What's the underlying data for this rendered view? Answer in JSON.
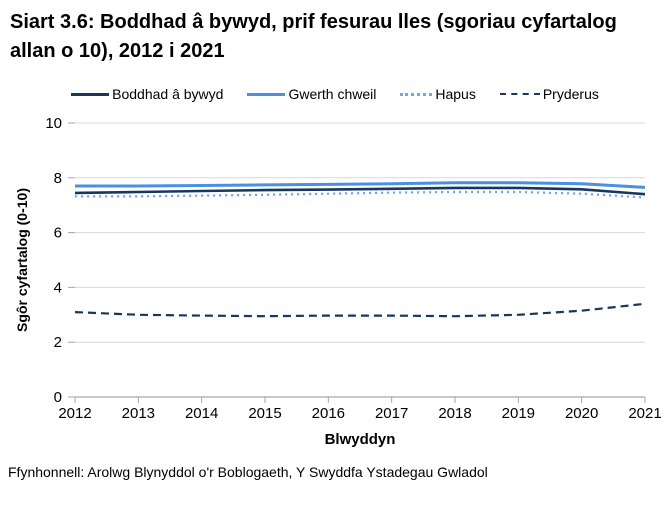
{
  "title": "Siart 3.6: Boddhad â bywyd, prif fesurau lles (sgoriau cyfartalog allan o 10), 2012 i 2021",
  "source": "Ffynhonnell: Arolwg Blynyddol o'r Boblogaeth, Y Swyddfa Ystadegau Gwladol",
  "colors": {
    "navy": "#17375e",
    "blue": "#4a90e2",
    "light_blue": "#72a6e4",
    "gridline": "#d9d9d9",
    "axis": "#a6a6a6",
    "text": "#000000"
  },
  "chart_data": {
    "type": "line",
    "title": "Siart 3.6: Boddhad â bywyd, prif fesurau lles (sgoriau cyfartalog allan o 10), 2012 i 2021",
    "x": [
      2012,
      2013,
      2014,
      2015,
      2016,
      2017,
      2018,
      2019,
      2020,
      2021
    ],
    "series": [
      {
        "name": "Boddhad â bywyd",
        "style": "solid",
        "color_key": "navy",
        "width": 2.6,
        "values": [
          7.45,
          7.48,
          7.52,
          7.55,
          7.57,
          7.6,
          7.63,
          7.63,
          7.58,
          7.4
        ]
      },
      {
        "name": "Gwerth chweil",
        "style": "solid",
        "color_key": "blue",
        "width": 3,
        "values": [
          7.7,
          7.7,
          7.72,
          7.74,
          7.76,
          7.78,
          7.82,
          7.82,
          7.78,
          7.65
        ]
      },
      {
        "name": "Hapus",
        "style": "dotted",
        "color_key": "light_blue",
        "width": 2.2,
        "values": [
          7.32,
          7.32,
          7.35,
          7.38,
          7.42,
          7.46,
          7.48,
          7.48,
          7.42,
          7.28
        ]
      },
      {
        "name": "Pryderus",
        "style": "dashed",
        "color_key": "navy",
        "width": 2.2,
        "values": [
          3.1,
          3.0,
          2.97,
          2.95,
          2.97,
          2.97,
          2.95,
          3.0,
          3.15,
          3.4
        ]
      }
    ],
    "xlabel": "Blwyddyn",
    "ylabel": "Sgôr cyfartalog (0-10)",
    "ylim": [
      0,
      10
    ],
    "yticks": [
      0,
      2,
      4,
      6,
      8,
      10
    ],
    "grid": true,
    "legend_position": "top"
  }
}
